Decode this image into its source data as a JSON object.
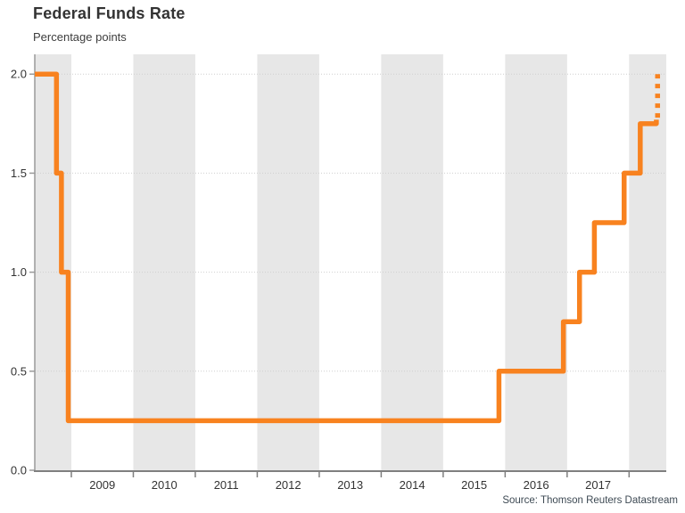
{
  "chart": {
    "title": "Federal Funds Rate",
    "subtitle": "Percentage points",
    "source": "Source: Thomson Reuters Datastream"
  },
  "colors": {
    "line": "#f8821f",
    "band": "#e7e7e7",
    "grid": "#cfcfcf",
    "axis_bottom": "#7f7f7f",
    "axis_left": "#9a9a9a",
    "tick_text": "#333333",
    "source_text": "#3e4a54"
  },
  "chart_data": {
    "type": "line",
    "title": "Federal Funds Rate",
    "subtitle": "Percentage points",
    "ylabel": "Percentage points",
    "xlabel": "",
    "legend": "none",
    "grid": "dotted-horizontal",
    "x_range": [
      2008.41,
      2018.6
    ],
    "ylim": [
      0,
      2.1
    ],
    "y_ticks": [
      "0.0",
      "0.5",
      "1.0",
      "1.5",
      "2.0"
    ],
    "x_year_ticks": [
      2009,
      2010,
      2011,
      2012,
      2013,
      2014,
      2015,
      2016,
      2017,
      2018
    ],
    "x_year_labels": [
      "2009",
      "2010",
      "2011",
      "2012",
      "2013",
      "2014",
      "2015",
      "2016",
      "2017"
    ],
    "shaded_year_bands": [
      [
        2008,
        2009
      ],
      [
        2010,
        2011
      ],
      [
        2012,
        2013
      ],
      [
        2014,
        2015
      ],
      [
        2016,
        2017
      ],
      [
        2018,
        2019
      ]
    ],
    "series": [
      {
        "name": "federal-funds-rate",
        "style": "solid",
        "color": "#f8821f",
        "points": [
          [
            2008.41,
            2.0
          ],
          [
            2008.76,
            2.0
          ],
          [
            2008.76,
            1.5
          ],
          [
            2008.84,
            1.5
          ],
          [
            2008.84,
            1.0
          ],
          [
            2008.95,
            1.0
          ],
          [
            2008.95,
            0.25
          ],
          [
            2015.9,
            0.25
          ],
          [
            2015.9,
            0.5
          ],
          [
            2016.94,
            0.5
          ],
          [
            2016.94,
            0.75
          ],
          [
            2017.2,
            0.75
          ],
          [
            2017.2,
            1.0
          ],
          [
            2017.44,
            1.0
          ],
          [
            2017.44,
            1.25
          ],
          [
            2017.92,
            1.25
          ],
          [
            2017.92,
            1.5
          ],
          [
            2018.18,
            1.5
          ],
          [
            2018.18,
            1.75
          ],
          [
            2018.44,
            1.75
          ],
          [
            2018.44,
            1.77
          ]
        ]
      },
      {
        "name": "projected-rate-hike",
        "style": "dotted",
        "color": "#f8821f",
        "points": [
          [
            2018.46,
            1.78
          ],
          [
            2018.46,
            2.0
          ]
        ]
      }
    ]
  }
}
